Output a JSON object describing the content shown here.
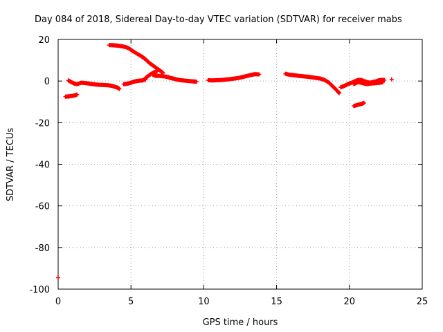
{
  "chart_data": {
    "type": "scatter",
    "title": "Day 084 of 2018, Sidereal Day-to-day VTEC variation (SDTVAR) for receiver mabs",
    "xlabel": "GPS time / hours",
    "ylabel": "SDTVAR / TECUs",
    "xlim": [
      0,
      25
    ],
    "ylim": [
      -100,
      20
    ],
    "x_ticks": [
      0,
      5,
      10,
      15,
      20,
      25
    ],
    "y_ticks": [
      -100,
      -80,
      -60,
      -40,
      -20,
      0,
      20
    ],
    "grid": true,
    "series": [
      {
        "name": "SDTVAR",
        "color": "#ff0000",
        "points": [
          [
            0.0,
            -94.5
          ],
          [
            0.5,
            -7.5
          ],
          [
            0.7,
            -7.4
          ],
          [
            0.9,
            -7.2
          ],
          [
            1.1,
            -7.0
          ],
          [
            1.3,
            -6.5
          ],
          [
            0.7,
            0.3
          ],
          [
            0.9,
            -0.5
          ],
          [
            1.1,
            -1.2
          ],
          [
            1.3,
            -1.5
          ],
          [
            1.6,
            -0.8
          ],
          [
            1.9,
            -1.0
          ],
          [
            2.2,
            -1.3
          ],
          [
            2.5,
            -1.6
          ],
          [
            2.8,
            -1.8
          ],
          [
            3.1,
            -1.9
          ],
          [
            3.4,
            -2.0
          ],
          [
            3.7,
            -2.3
          ],
          [
            3.9,
            -2.8
          ],
          [
            4.1,
            -3.2
          ],
          [
            4.2,
            -3.8
          ],
          [
            4.5,
            -1.5
          ],
          [
            4.8,
            -1.2
          ],
          [
            5.0,
            -0.8
          ],
          [
            5.2,
            -0.3
          ],
          [
            5.4,
            0.0
          ],
          [
            5.6,
            0.2
          ],
          [
            5.8,
            0.3
          ],
          [
            6.0,
            0.8
          ],
          [
            3.5,
            17.3
          ],
          [
            3.8,
            17.2
          ],
          [
            4.1,
            17.0
          ],
          [
            4.4,
            16.7
          ],
          [
            4.7,
            16.2
          ],
          [
            4.9,
            15.5
          ],
          [
            5.1,
            14.5
          ],
          [
            5.4,
            13.2
          ],
          [
            5.7,
            12.0
          ],
          [
            5.9,
            11.0
          ],
          [
            6.1,
            9.8
          ],
          [
            6.3,
            8.5
          ],
          [
            6.5,
            7.5
          ],
          [
            6.7,
            6.5
          ],
          [
            6.9,
            5.5
          ],
          [
            7.1,
            4.5
          ],
          [
            7.2,
            3.8
          ],
          [
            6.0,
            1.5
          ],
          [
            6.2,
            2.5
          ],
          [
            6.4,
            3.5
          ],
          [
            6.6,
            4.2
          ],
          [
            6.8,
            4.8
          ],
          [
            6.5,
            3.0
          ],
          [
            6.7,
            2.5
          ],
          [
            6.9,
            2.5
          ],
          [
            7.2,
            2.3
          ],
          [
            7.5,
            2.0
          ],
          [
            7.7,
            1.5
          ],
          [
            7.9,
            1.2
          ],
          [
            8.1,
            0.8
          ],
          [
            8.4,
            0.4
          ],
          [
            8.7,
            0.2
          ],
          [
            9.0,
            0.0
          ],
          [
            9.3,
            -0.2
          ],
          [
            9.5,
            -0.3
          ],
          [
            10.3,
            0.4
          ],
          [
            10.6,
            0.3
          ],
          [
            10.9,
            0.4
          ],
          [
            11.2,
            0.5
          ],
          [
            11.5,
            0.7
          ],
          [
            11.8,
            0.9
          ],
          [
            12.1,
            1.2
          ],
          [
            12.4,
            1.5
          ],
          [
            12.7,
            2.0
          ],
          [
            13.0,
            2.5
          ],
          [
            13.3,
            3.0
          ],
          [
            13.5,
            3.3
          ],
          [
            13.8,
            3.2
          ],
          [
            15.6,
            3.5
          ],
          [
            15.9,
            3.0
          ],
          [
            16.2,
            2.8
          ],
          [
            16.5,
            2.5
          ],
          [
            16.8,
            2.3
          ],
          [
            17.1,
            2.1
          ],
          [
            17.4,
            1.8
          ],
          [
            17.7,
            1.5
          ],
          [
            18.0,
            1.2
          ],
          [
            18.3,
            0.5
          ],
          [
            18.6,
            -0.8
          ],
          [
            18.8,
            -2.2
          ],
          [
            19.0,
            -3.5
          ],
          [
            19.2,
            -5.0
          ],
          [
            19.3,
            -5.8
          ],
          [
            19.4,
            -3.0
          ],
          [
            19.6,
            -2.5
          ],
          [
            19.8,
            -1.8
          ],
          [
            20.0,
            -1.2
          ],
          [
            20.2,
            -0.7
          ],
          [
            20.4,
            0.0
          ],
          [
            20.6,
            0.5
          ],
          [
            20.8,
            0.5
          ],
          [
            21.0,
            0.0
          ],
          [
            21.2,
            -0.5
          ],
          [
            21.4,
            -0.8
          ],
          [
            21.6,
            -0.5
          ],
          [
            21.8,
            -0.2
          ],
          [
            22.0,
            0.3
          ],
          [
            22.2,
            0.5
          ],
          [
            22.4,
            0.5
          ],
          [
            20.3,
            -1.5
          ],
          [
            20.6,
            -0.5
          ],
          [
            20.9,
            -1.0
          ],
          [
            21.2,
            -1.5
          ],
          [
            21.5,
            -1.2
          ],
          [
            21.8,
            -1.0
          ],
          [
            22.1,
            -0.8
          ],
          [
            22.3,
            -0.5
          ],
          [
            20.3,
            -12.0
          ],
          [
            20.5,
            -11.6
          ],
          [
            20.7,
            -11.2
          ],
          [
            20.9,
            -10.8
          ],
          [
            21.0,
            -10.5
          ],
          [
            22.9,
            0.8
          ]
        ]
      }
    ]
  }
}
